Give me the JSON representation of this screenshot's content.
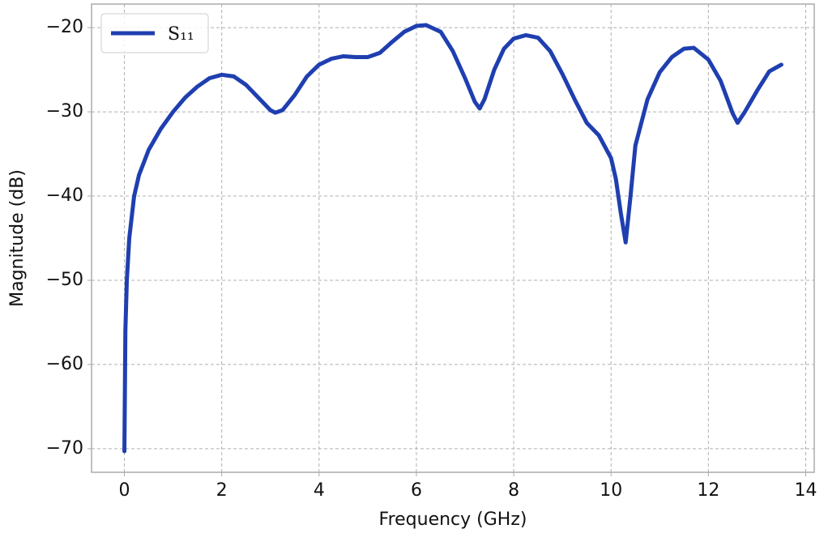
{
  "chart_data": {
    "type": "line",
    "x_label": "Frequency (GHz)",
    "y_label": "Magnitude (dB)",
    "xlim": [
      -0.675,
      14.175
    ],
    "ylim": [
      -72.8,
      -17.2
    ],
    "xticks": [
      0,
      2,
      4,
      6,
      8,
      10,
      12,
      14
    ],
    "yticks": [
      {
        "value": -70,
        "label": "−70"
      },
      {
        "value": -60,
        "label": "−60"
      },
      {
        "value": -50,
        "label": "−50"
      },
      {
        "value": -40,
        "label": "−40"
      },
      {
        "value": -30,
        "label": "−30"
      },
      {
        "value": -20,
        "label": "−20"
      }
    ],
    "grid": true,
    "legend": "upper-left",
    "x": [
      0,
      0.02,
      0.05,
      0.1,
      0.2,
      0.3,
      0.5,
      0.75,
      1.0,
      1.25,
      1.5,
      1.75,
      2.0,
      2.25,
      2.5,
      2.75,
      3.0,
      3.1,
      3.25,
      3.5,
      3.75,
      4.0,
      4.25,
      4.5,
      4.75,
      5.0,
      5.25,
      5.5,
      5.75,
      6.0,
      6.2,
      6.5,
      6.75,
      7.0,
      7.2,
      7.3,
      7.4,
      7.6,
      7.8,
      8.0,
      8.25,
      8.5,
      8.75,
      9.0,
      9.25,
      9.5,
      9.75,
      10.0,
      10.1,
      10.2,
      10.3,
      10.4,
      10.5,
      10.75,
      11.0,
      11.25,
      11.5,
      11.7,
      12.0,
      12.25,
      12.5,
      12.6,
      12.75,
      13.0,
      13.25,
      13.5
    ],
    "series": [
      {
        "name": "S₁₁",
        "color": "#1f3fb0",
        "values": [
          -70.3,
          -56,
          -50,
          -45,
          -40,
          -37.5,
          -34.5,
          -32,
          -30,
          -28.3,
          -27,
          -26,
          -25.6,
          -25.8,
          -26.8,
          -28.3,
          -29.8,
          -30.1,
          -29.8,
          -28,
          -25.8,
          -24.4,
          -23.7,
          -23.4,
          -23.5,
          -23.5,
          -23.0,
          -21.7,
          -20.5,
          -19.8,
          -19.7,
          -20.5,
          -22.8,
          -26,
          -28.8,
          -29.6,
          -28.5,
          -25,
          -22.5,
          -21.3,
          -20.9,
          -21.2,
          -22.8,
          -25.5,
          -28.5,
          -31.3,
          -32.8,
          -35.5,
          -38,
          -42,
          -45.5,
          -40,
          -34,
          -28.5,
          -25.3,
          -23.5,
          -22.5,
          -22.4,
          -23.8,
          -26.3,
          -30.2,
          -31.3,
          -30,
          -27.5,
          -25.2,
          -24.4
        ]
      }
    ]
  }
}
